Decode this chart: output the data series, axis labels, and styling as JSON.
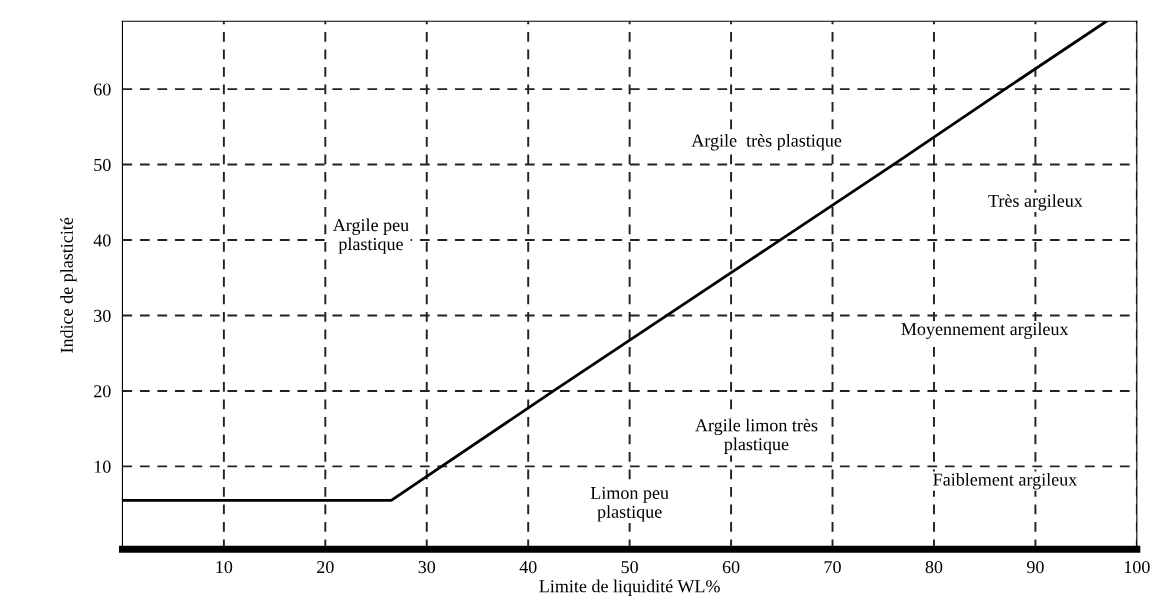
{
  "chart_data": {
    "type": "line",
    "xlabel": "Limite de liquidité WL%",
    "ylabel": "Indice de plasticité",
    "x": [
      0,
      26.5,
      42.5,
      76,
      87,
      97
    ],
    "series": [
      {
        "color": "#000000",
        "values": [
          5.5,
          5.5,
          20,
          50,
          60,
          69
        ]
      }
    ],
    "xlim": [
      0,
      100
    ],
    "xticks": [
      10,
      20,
      30,
      40,
      50,
      60,
      70,
      80,
      90,
      100
    ],
    "ylim": [
      -1,
      69
    ],
    "yticks": [
      10,
      20,
      30,
      40,
      50,
      60
    ],
    "grid": true,
    "line_style": "solid",
    "marker": "none",
    "annotations": [
      "Argile peu\nplastique",
      "Argile  très plastique",
      "Très argileux",
      "Moyennement argileux",
      "Argile limon très\nplastique",
      "Limon peu\nplastique",
      "Faiblement argileux"
    ]
  }
}
